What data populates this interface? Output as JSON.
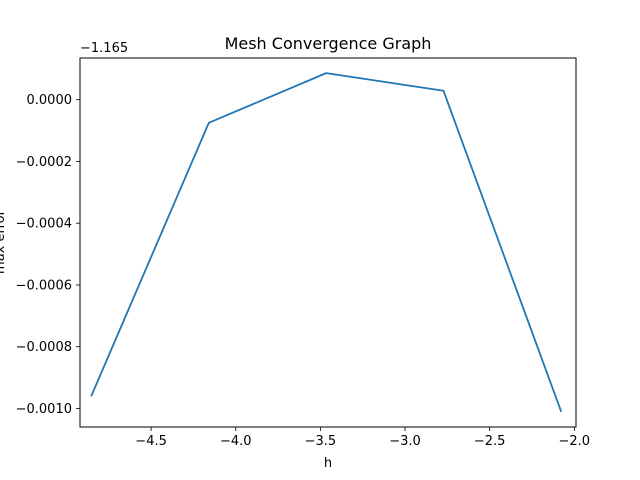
{
  "chart_data": {
    "type": "line",
    "title": "Mesh Convergence Graph",
    "xlabel": "h",
    "ylabel": "max error",
    "offset_text": "−1.165",
    "xlim": [
      -4.92,
      -1.99
    ],
    "ylim": [
      -0.00106,
      0.000135
    ],
    "xticks": [
      -4.5,
      -4.0,
      -3.5,
      -3.0,
      -2.5,
      -2.0
    ],
    "xtick_labels": [
      "−4.5",
      "−4.0",
      "−3.5",
      "−3.0",
      "−2.5",
      "−2.0"
    ],
    "yticks": [
      0.0,
      -0.0002,
      -0.0004,
      -0.0006,
      -0.0008,
      -0.001
    ],
    "ytick_labels": [
      "0.0000",
      "−0.0002",
      "−0.0004",
      "−0.0006",
      "−0.0008",
      "−0.0010"
    ],
    "grid": false,
    "series": [
      {
        "color": "#1f77b4",
        "x": [
          -4.852,
          -4.159,
          -3.466,
          -2.773,
          -2.079
        ],
        "y": [
          -0.000958,
          -7.5e-05,
          8.6e-05,
          2.9e-05,
          -0.001008
        ]
      }
    ]
  }
}
